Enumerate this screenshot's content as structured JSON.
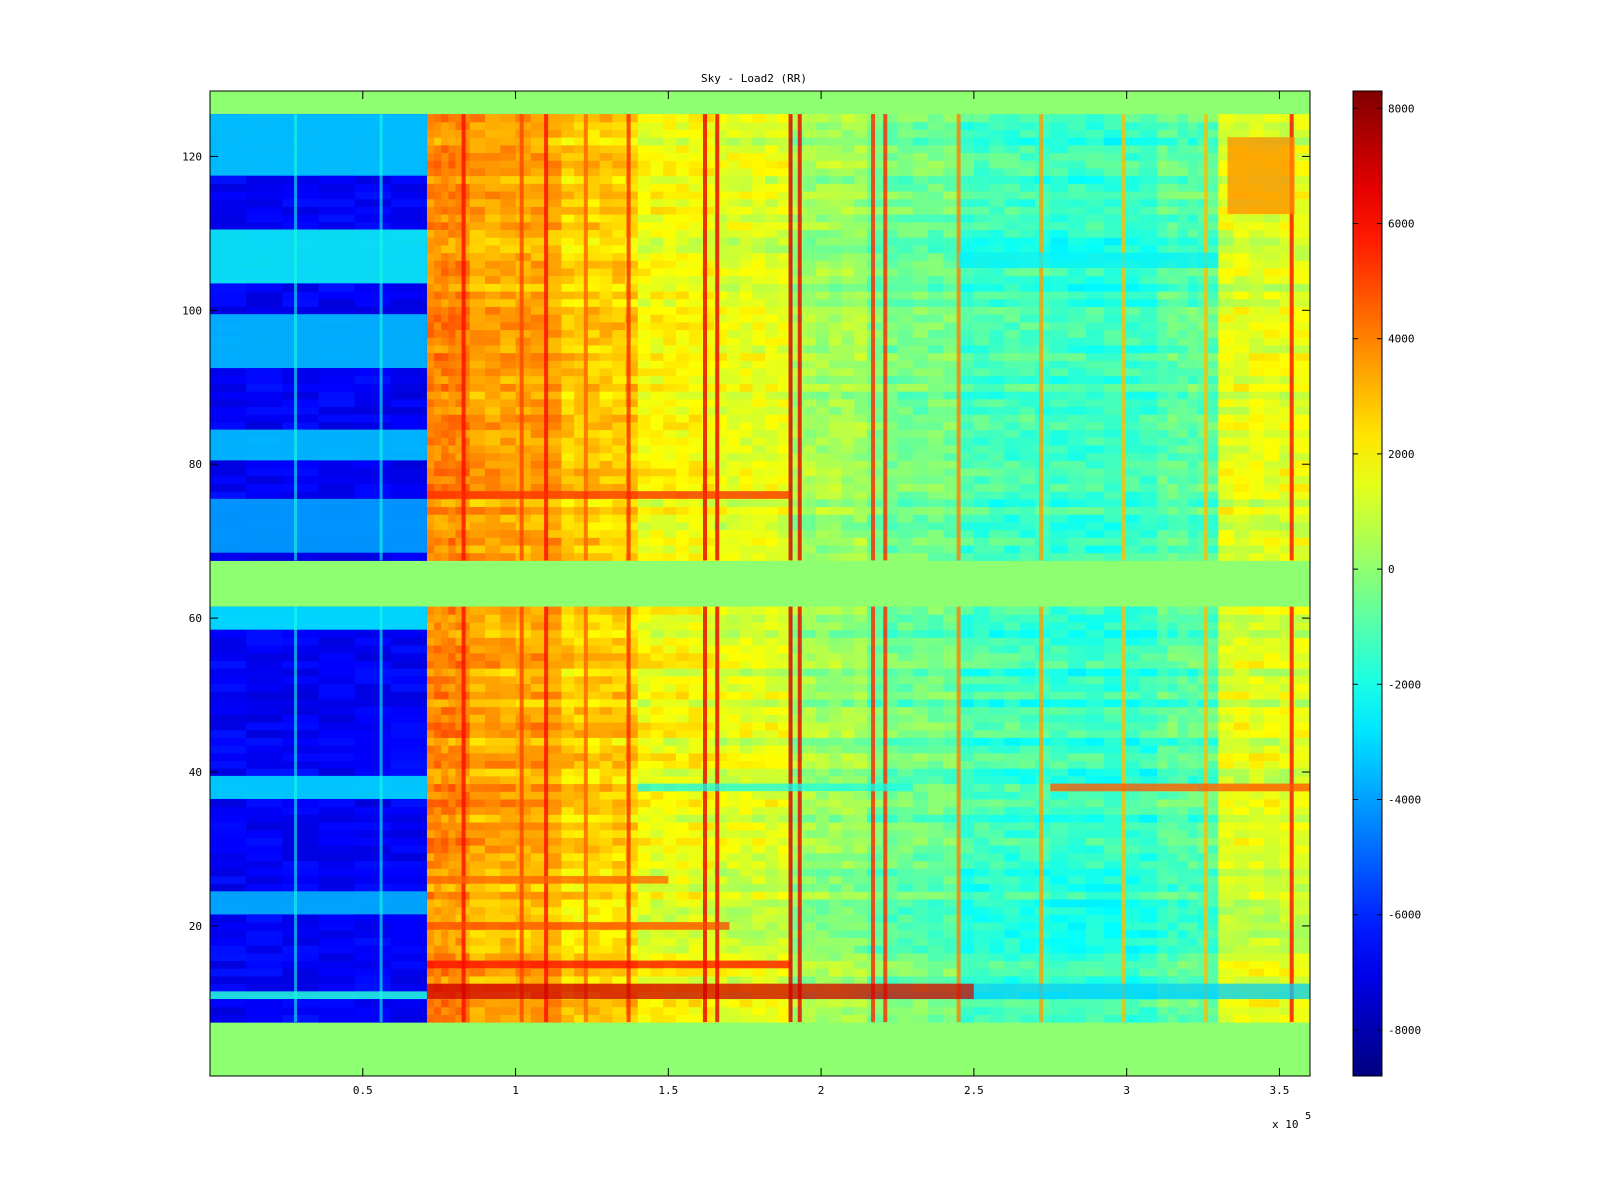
{
  "chart_data": {
    "type": "heatmap",
    "title": "Sky - Load2 (RR)",
    "xlabel": "",
    "ylabel": "",
    "x_exponent_label": "x 10",
    "x_exponent_power": "5",
    "xlim": [
      0,
      360000
    ],
    "ylim": [
      0.5,
      128.5
    ],
    "x_ticks": [
      {
        "value": 50000,
        "label": "0.5"
      },
      {
        "value": 100000,
        "label": "1"
      },
      {
        "value": 150000,
        "label": "1.5"
      },
      {
        "value": 200000,
        "label": "2"
      },
      {
        "value": 250000,
        "label": "2.5"
      },
      {
        "value": 300000,
        "label": "3"
      },
      {
        "value": 350000,
        "label": "3.5"
      }
    ],
    "y_ticks": [
      {
        "value": 20,
        "label": "20"
      },
      {
        "value": 40,
        "label": "40"
      },
      {
        "value": 60,
        "label": "60"
      },
      {
        "value": 80,
        "label": "80"
      },
      {
        "value": 100,
        "label": "100"
      },
      {
        "value": 120,
        "label": "120"
      }
    ],
    "colorbar": {
      "colormap": "jet",
      "clim": [
        -8800,
        8300
      ],
      "ticks": [
        {
          "value": 8000,
          "label": "8000"
        },
        {
          "value": 6000,
          "label": "6000"
        },
        {
          "value": 4000,
          "label": "4000"
        },
        {
          "value": 2000,
          "label": "2000"
        },
        {
          "value": 0,
          "label": "0"
        },
        {
          "value": -2000,
          "label": "-2000"
        },
        {
          "value": -4000,
          "label": "-4000"
        },
        {
          "value": -6000,
          "label": "-6000"
        },
        {
          "value": -8000,
          "label": "-8000"
        }
      ]
    },
    "background_value": 0,
    "empty_rows": {
      "bottom": [
        1,
        7
      ],
      "middle": [
        62,
        67
      ],
      "top": [
        126,
        128
      ]
    },
    "x_segments": [
      {
        "x_start": 0,
        "x_end": 71000,
        "value": -6800
      },
      {
        "x_start": 71000,
        "x_end": 85000,
        "value": 3800
      },
      {
        "x_start": 85000,
        "x_end": 115000,
        "value": 3300
      },
      {
        "x_start": 115000,
        "x_end": 140000,
        "value": 2600
      },
      {
        "x_start": 140000,
        "x_end": 165000,
        "value": 1700
      },
      {
        "x_start": 165000,
        "x_end": 190000,
        "value": 1300
      },
      {
        "x_start": 190000,
        "x_end": 215000,
        "value": 200
      },
      {
        "x_start": 215000,
        "x_end": 245000,
        "value": -600
      },
      {
        "x_start": 245000,
        "x_end": 275000,
        "value": -1400
      },
      {
        "x_start": 275000,
        "x_end": 310000,
        "value": -1600
      },
      {
        "x_start": 310000,
        "x_end": 330000,
        "value": -1000
      },
      {
        "x_start": 330000,
        "x_end": 360000,
        "value": 1300
      }
    ],
    "vertical_streaks": [
      {
        "x": 83000,
        "value": 6000
      },
      {
        "x": 102000,
        "value": 5000
      },
      {
        "x": 110000,
        "value": 6000
      },
      {
        "x": 123000,
        "value": 4500
      },
      {
        "x": 137000,
        "value": 5500
      },
      {
        "x": 162000,
        "value": 6500
      },
      {
        "x": 166000,
        "value": 6500
      },
      {
        "x": 190000,
        "value": 7000
      },
      {
        "x": 193000,
        "value": 6500
      },
      {
        "x": 217000,
        "value": 5500
      },
      {
        "x": 221000,
        "value": 5500
      },
      {
        "x": 245000,
        "value": 4000
      },
      {
        "x": 272000,
        "value": 3500
      },
      {
        "x": 299000,
        "value": 3000
      },
      {
        "x": 326000,
        "value": 3000
      },
      {
        "x": 354000,
        "value": 6000
      }
    ],
    "horizontal_bands": [
      {
        "y_start": 10.5,
        "y_end": 12.5,
        "x_start": 71000,
        "x_end": 250000,
        "value": 7000
      },
      {
        "y_start": 10.5,
        "y_end": 12.5,
        "x_start": 250000,
        "x_end": 360000,
        "value": -3200
      },
      {
        "y_start": 14.5,
        "y_end": 15.5,
        "x_start": 71000,
        "x_end": 190000,
        "value": 6000
      },
      {
        "y_start": 19.5,
        "y_end": 20.5,
        "x_start": 71000,
        "x_end": 170000,
        "value": 5000
      },
      {
        "y_start": 25.5,
        "y_end": 26.5,
        "x_start": 71000,
        "x_end": 150000,
        "value": 4500
      },
      {
        "y_start": 37.5,
        "y_end": 38.5,
        "x_start": 140000,
        "x_end": 230000,
        "value": -2200
      },
      {
        "y_start": 37.5,
        "y_end": 38.5,
        "x_start": 275000,
        "x_end": 360000,
        "value": 4800
      },
      {
        "y_start": 75.5,
        "y_end": 76.5,
        "x_start": 71000,
        "x_end": 190000,
        "value": 5500
      },
      {
        "y_start": 105.5,
        "y_end": 107.5,
        "x_start": 245000,
        "x_end": 330000,
        "value": -2600
      },
      {
        "y_start": 112.5,
        "y_end": 122.5,
        "x_start": 333000,
        "x_end": 355000,
        "value": 3800
      }
    ],
    "left_block_light_rows": [
      {
        "y_start": 10.5,
        "y_end": 11.5,
        "value": -1800
      },
      {
        "y_start": 21.5,
        "y_end": 24.5,
        "value": -3500
      },
      {
        "y_start": 36.5,
        "y_end": 39.5,
        "value": -2800
      },
      {
        "y_start": 58.5,
        "y_end": 61.5,
        "value": -2500
      },
      {
        "y_start": 68.5,
        "y_end": 75.5,
        "value": -3800
      },
      {
        "y_start": 80.5,
        "y_end": 84.5,
        "value": -3200
      },
      {
        "y_start": 92.5,
        "y_end": 99.5,
        "value": -3300
      },
      {
        "y_start": 103.5,
        "y_end": 110.5,
        "value": -2200
      },
      {
        "y_start": 117.5,
        "y_end": 125.5,
        "value": -3000
      }
    ],
    "left_block_streaks": [
      {
        "x": 28000,
        "value": -2000
      },
      {
        "x": 56000,
        "value": -2000
      }
    ]
  }
}
